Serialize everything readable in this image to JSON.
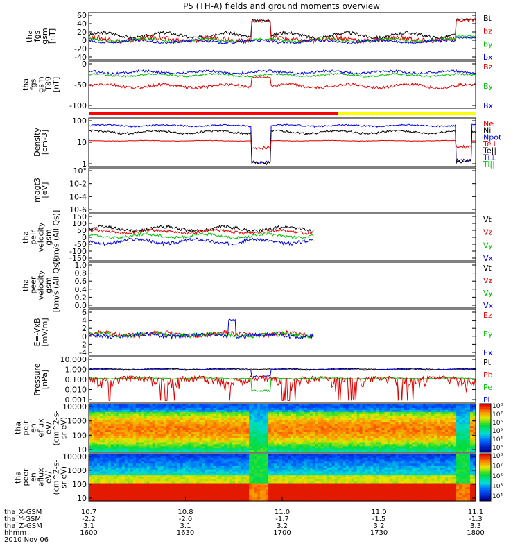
{
  "title": "P5 (TH-A) fields and ground moments overview",
  "colors": {
    "black": "#000000",
    "red": "#e00000",
    "green": "#00c000",
    "blue": "#0000e0",
    "yellow": "#ffff00",
    "bar_red": "#ff0000"
  },
  "chart_data": [
    {
      "id": "fgs",
      "type": "line",
      "ylabel": [
        "tha",
        "fgs",
        "gsm",
        "[nT]"
      ],
      "ylim": [
        -40,
        60
      ],
      "yticks": [
        60,
        40,
        20,
        0,
        -20,
        -40
      ],
      "legend": [
        {
          "label": "Bt",
          "color": "black"
        },
        {
          "label": "bz",
          "color": "red"
        },
        {
          "label": "by",
          "color": "green"
        },
        {
          "label": "bx",
          "color": "blue"
        }
      ],
      "series": [
        {
          "name": "Bt",
          "color": "black",
          "base": 12,
          "amp": 6,
          "noise": 4,
          "events": [
            [
              0.42,
              0.47,
              48
            ],
            [
              0.95,
              1.0,
              50
            ]
          ]
        },
        {
          "name": "bz",
          "color": "red",
          "base": 2,
          "amp": 4,
          "noise": 6,
          "events": [
            [
              0.42,
              0.47,
              45
            ],
            [
              0.95,
              1.0,
              48
            ]
          ]
        },
        {
          "name": "by",
          "color": "green",
          "base": 0,
          "amp": 3,
          "noise": 3,
          "events": [
            [
              0.95,
              1.0,
              10
            ]
          ]
        },
        {
          "name": "bx",
          "color": "blue",
          "base": -3,
          "amp": 3,
          "noise": 3,
          "events": [
            [
              0.95,
              1.0,
              6
            ]
          ]
        }
      ]
    },
    {
      "id": "fgs_t89",
      "type": "line",
      "ylabel": [
        "tha",
        "fgs",
        "gsm",
        "-T89",
        "[nT]"
      ],
      "ylim": [
        -120,
        20
      ],
      "yticks": [
        0,
        -50,
        -100
      ],
      "legend": [
        {
          "label": "Bz",
          "color": "red"
        },
        {
          "label": "By",
          "color": "green"
        },
        {
          "label": "Bx",
          "color": "blue"
        }
      ],
      "series": [
        {
          "name": "Bz",
          "color": "red",
          "base": -55,
          "amp": 6,
          "noise": 5,
          "events": [
            [
              0.42,
              0.47,
              -25
            ]
          ]
        },
        {
          "name": "By",
          "color": "green",
          "base": -18,
          "amp": 4,
          "noise": 3,
          "events": []
        },
        {
          "name": "Bx",
          "color": "blue",
          "base": -8,
          "amp": 4,
          "noise": 4,
          "events": []
        }
      ]
    },
    {
      "id": "density",
      "type": "line",
      "log": true,
      "ylabel": [
        "Density",
        "[cm-3]"
      ],
      "ylim": [
        1,
        200
      ],
      "yticks": [
        100,
        10,
        1
      ],
      "legend": [
        {
          "label": "Ne",
          "color": "red"
        },
        {
          "label": "Ni",
          "color": "black"
        },
        {
          "label": "Npot",
          "color": "blue"
        },
        {
          "label": "Te⊥",
          "color": "red"
        },
        {
          "label": "Te||",
          "color": "black"
        },
        {
          "label": "Ti⊥",
          "color": "blue"
        },
        {
          "label": "Ti||",
          "color": "green"
        }
      ],
      "series": [
        {
          "name": "Npot",
          "color": "blue",
          "base": 110,
          "amp": 10,
          "noise": 10,
          "dips": [
            [
              0.42,
              0.47,
              1.2
            ],
            [
              0.95,
              0.99,
              1.5
            ]
          ]
        },
        {
          "name": "Ni",
          "color": "black",
          "base": 50,
          "amp": 8,
          "noise": 6,
          "dips": [
            [
              0.42,
              0.47,
              1.1
            ],
            [
              0.95,
              0.99,
              1.3
            ]
          ]
        },
        {
          "name": "Ne",
          "color": "red",
          "base": 17,
          "amp": 0.5,
          "noise": 0.5,
          "dips": [
            [
              0.42,
              0.47,
              7
            ],
            [
              0.95,
              0.99,
              8
            ]
          ]
        }
      ]
    },
    {
      "id": "magt3",
      "type": "line",
      "log": true,
      "ylabel": [
        "magt3",
        "[eV]"
      ],
      "yticks": [
        "10°",
        "10-2",
        "10-4",
        "10-6"
      ],
      "series": []
    },
    {
      "id": "peir_velocity",
      "type": "line",
      "ylabel": [
        "tha",
        "peir",
        "velocity",
        "gsm",
        "[km/s (All Qs)]"
      ],
      "ylim": [
        -150,
        150
      ],
      "yticks": [
        150,
        100,
        50,
        0,
        -50,
        -100,
        -150
      ],
      "xlim_data": [
        0,
        0.58
      ],
      "legend": [
        {
          "label": "Vt",
          "color": "black"
        },
        {
          "label": "Vz",
          "color": "red"
        },
        {
          "label": "Vy",
          "color": "green"
        },
        {
          "label": "Vx",
          "color": "blue"
        }
      ],
      "series": [
        {
          "name": "Vt",
          "color": "black",
          "base": 60,
          "amp": 15,
          "noise": 12,
          "events": []
        },
        {
          "name": "Vz",
          "color": "red",
          "base": 40,
          "amp": 10,
          "noise": 10,
          "events": []
        },
        {
          "name": "Vy",
          "color": "green",
          "base": 10,
          "amp": 12,
          "noise": 10,
          "events": []
        },
        {
          "name": "Vx",
          "color": "blue",
          "base": -30,
          "amp": 15,
          "noise": 12,
          "events": []
        }
      ]
    },
    {
      "id": "peer_velocity",
      "type": "line",
      "ylabel": [
        "tha",
        "peer",
        "velocity",
        "gsm",
        "[km/s (All Qs)]"
      ],
      "ylim": [
        0,
        1
      ],
      "yticks": [
        "1.0",
        "0.8",
        "0.6",
        "0.4",
        "0.2",
        "0.0"
      ],
      "legend": [
        {
          "label": "Vt",
          "color": "black"
        },
        {
          "label": "Vz",
          "color": "red"
        },
        {
          "label": "Vy",
          "color": "green"
        },
        {
          "label": "Vx",
          "color": "blue"
        }
      ],
      "series": []
    },
    {
      "id": "efield",
      "type": "line",
      "ylabel": [
        "E=-VxB",
        "[mV/m]"
      ],
      "ylim": [
        -4,
        6
      ],
      "yticks": [
        6,
        4,
        2,
        0,
        -2,
        -4
      ],
      "xlim_data": [
        0,
        0.58
      ],
      "legend": [
        {
          "label": "Ez",
          "color": "red"
        },
        {
          "label": "Ey",
          "color": "green"
        },
        {
          "label": "Ex",
          "color": "blue"
        }
      ],
      "series": [
        {
          "name": "Ez",
          "color": "red",
          "base": 0.5,
          "amp": 0.3,
          "noise": 0.6,
          "events": []
        },
        {
          "name": "Ey",
          "color": "green",
          "base": 0.4,
          "amp": 0.3,
          "noise": 0.5,
          "events": []
        },
        {
          "name": "Ex",
          "color": "blue",
          "base": 0.2,
          "amp": 0.3,
          "noise": 0.5,
          "events": [
            [
              0.36,
              0.38,
              4
            ]
          ]
        }
      ]
    },
    {
      "id": "pressure",
      "type": "line",
      "log": true,
      "ylabel": [
        "Pressure",
        "[nPa]"
      ],
      "ylim": [
        0.001,
        10
      ],
      "yticks": [
        "10.000",
        "1.000",
        "0.100",
        "0.010",
        "0.001"
      ],
      "legend": [
        {
          "label": "Pt",
          "color": "black"
        },
        {
          "label": "Pb",
          "color": "red"
        },
        {
          "label": "Pe",
          "color": "green"
        },
        {
          "label": "Pi",
          "color": "blue"
        }
      ],
      "series": [
        {
          "name": "Pt",
          "color": "black",
          "base": 1.1,
          "amp": 0.1,
          "noise": 0.1,
          "dips": []
        },
        {
          "name": "Pi",
          "color": "blue",
          "base": 0.95,
          "amp": 0.08,
          "noise": 0.08,
          "dips": [
            [
              0.42,
              0.47,
              0.2
            ]
          ]
        },
        {
          "name": "Pe",
          "color": "green",
          "base": 0.13,
          "amp": 0.01,
          "noise": 0.01,
          "dips": [
            [
              0.42,
              0.47,
              0.008
            ]
          ]
        },
        {
          "name": "Pb",
          "color": "red",
          "base": 0.1,
          "amp": 0.05,
          "noise": 0.09,
          "dips": []
        }
      ]
    },
    {
      "id": "peir_spec",
      "type": "heatmap",
      "ylabel": [
        "tha",
        "peir",
        "en",
        "eflux",
        "eV/",
        "(cm^2-s-",
        "sr-eV)"
      ],
      "ylim": [
        10,
        20000
      ],
      "yticks": [
        "10000",
        "1000",
        "100",
        "10"
      ],
      "colorbar": [
        "10⁸",
        "10⁷",
        "10⁶",
        "10⁵",
        "10⁴",
        "10³"
      ]
    },
    {
      "id": "peer_spec",
      "type": "heatmap",
      "ylabel": [
        "tha",
        "peer",
        "en",
        "eflux",
        "eV/",
        "(cm^2-s-",
        "sr-eV)"
      ],
      "ylim": [
        10,
        20000
      ],
      "yticks": [
        "10000",
        "1000",
        "100",
        "10"
      ],
      "colorbar": [
        "10⁸",
        "10⁷",
        "10⁶",
        "10⁵",
        "10⁴"
      ]
    }
  ],
  "xaxis": {
    "tick_labels": {
      "rows": [
        {
          "label": "tha_X-GSM",
          "values": [
            "10.7",
            "10.8",
            "11.0",
            "11.0",
            "11.1"
          ]
        },
        {
          "label": "tha_Y-GSM",
          "values": [
            "-2.2",
            "-2.0",
            "-1.7",
            "-1.5",
            "-1.3"
          ]
        },
        {
          "label": "tha_Z-GSM",
          "values": [
            "3.1",
            "3.1",
            "3.2",
            "3.2",
            "3.3"
          ]
        },
        {
          "label": "hhmm",
          "values": [
            "1600",
            "1630",
            "1700",
            "1730",
            "1800"
          ]
        }
      ],
      "date": "2010 Nov 06"
    }
  }
}
